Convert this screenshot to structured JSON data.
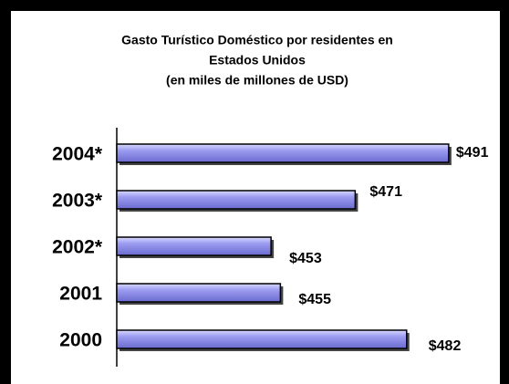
{
  "chart_data": {
    "type": "barh",
    "title": [
      "Gasto Turístico Doméstico por residentes en",
      "Estados Unidos",
      "(en miles de millones de USD)"
    ],
    "categories": [
      "2000",
      "2001",
      "2002*",
      "2003*",
      "2004*"
    ],
    "values": [
      482,
      455,
      453,
      471,
      491
    ],
    "value_labels": [
      "$482",
      "$455",
      "$453",
      "$471",
      "$491"
    ],
    "color": "#9c9cf0",
    "xlim": [
      420,
      500
    ]
  }
}
